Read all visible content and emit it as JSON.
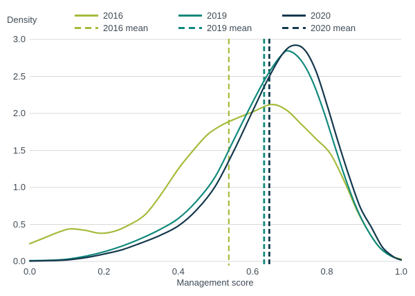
{
  "figure_text": {
    "y_axis_title": "Density",
    "x_axis_title": "Management score"
  },
  "colors": {
    "series_2016": "#a4bc3c",
    "series_2019": "#11897c",
    "series_2020": "#14384d",
    "text": "#3f4a54",
    "gridline": "#d9d9d9",
    "background": "#ffffff"
  },
  "legend": {
    "rows": [
      [
        {
          "label": "2016",
          "color": "#a4bc3c",
          "dashed": false
        },
        {
          "label": "2019",
          "color": "#11897c",
          "dashed": false
        },
        {
          "label": "2020",
          "color": "#14384d",
          "dashed": false
        }
      ],
      [
        {
          "label": "2016 mean",
          "color": "#a4bc3c",
          "dashed": true
        },
        {
          "label": "2019 mean",
          "color": "#11897c",
          "dashed": true
        },
        {
          "label": "2020 mean",
          "color": "#14384d",
          "dashed": true
        }
      ]
    ]
  },
  "chart_data": {
    "type": "line",
    "title": "",
    "xlabel": "Management score",
    "ylabel": "Density",
    "xlim": [
      0,
      1
    ],
    "ylim": [
      0,
      3
    ],
    "xticks": [
      "0.0",
      "0.2",
      "0.4",
      "0.6",
      "0.8",
      "1.0"
    ],
    "yticks": [
      "0.0",
      "0.5",
      "1.0",
      "1.5",
      "2.0",
      "2.5",
      "3.0"
    ],
    "grid": "horizontal",
    "legend_position": "top",
    "series": [
      {
        "name": "2016",
        "color": "#a4bc3c",
        "points": [
          [
            0.0,
            0.24
          ],
          [
            0.04,
            0.32
          ],
          [
            0.08,
            0.4
          ],
          [
            0.11,
            0.44
          ],
          [
            0.15,
            0.42
          ],
          [
            0.19,
            0.38
          ],
          [
            0.23,
            0.41
          ],
          [
            0.27,
            0.5
          ],
          [
            0.31,
            0.63
          ],
          [
            0.35,
            0.88
          ],
          [
            0.4,
            1.25
          ],
          [
            0.44,
            1.5
          ],
          [
            0.48,
            1.72
          ],
          [
            0.52,
            1.85
          ],
          [
            0.56,
            1.94
          ],
          [
            0.6,
            2.02
          ],
          [
            0.65,
            2.12
          ],
          [
            0.69,
            2.05
          ],
          [
            0.73,
            1.86
          ],
          [
            0.77,
            1.66
          ],
          [
            0.81,
            1.45
          ],
          [
            0.85,
            1.05
          ],
          [
            0.88,
            0.7
          ],
          [
            0.91,
            0.42
          ],
          [
            0.94,
            0.2
          ],
          [
            0.97,
            0.08
          ],
          [
            1.0,
            0.03
          ]
        ]
      },
      {
        "name": "2019",
        "color": "#11897c",
        "points": [
          [
            0.0,
            0.01
          ],
          [
            0.05,
            0.015
          ],
          [
            0.1,
            0.03
          ],
          [
            0.15,
            0.07
          ],
          [
            0.2,
            0.13
          ],
          [
            0.25,
            0.21
          ],
          [
            0.3,
            0.31
          ],
          [
            0.35,
            0.43
          ],
          [
            0.4,
            0.58
          ],
          [
            0.45,
            0.82
          ],
          [
            0.5,
            1.15
          ],
          [
            0.55,
            1.65
          ],
          [
            0.6,
            2.15
          ],
          [
            0.64,
            2.52
          ],
          [
            0.68,
            2.8
          ],
          [
            0.7,
            2.84
          ],
          [
            0.73,
            2.72
          ],
          [
            0.76,
            2.45
          ],
          [
            0.79,
            2.05
          ],
          [
            0.82,
            1.58
          ],
          [
            0.85,
            1.12
          ],
          [
            0.88,
            0.72
          ],
          [
            0.91,
            0.42
          ],
          [
            0.94,
            0.2
          ],
          [
            0.97,
            0.08
          ],
          [
            1.0,
            0.02
          ]
        ]
      },
      {
        "name": "2020",
        "color": "#14384d",
        "points": [
          [
            0.0,
            0.005
          ],
          [
            0.05,
            0.01
          ],
          [
            0.1,
            0.02
          ],
          [
            0.15,
            0.05
          ],
          [
            0.2,
            0.1
          ],
          [
            0.25,
            0.16
          ],
          [
            0.3,
            0.25
          ],
          [
            0.35,
            0.35
          ],
          [
            0.4,
            0.48
          ],
          [
            0.45,
            0.7
          ],
          [
            0.5,
            1.02
          ],
          [
            0.55,
            1.5
          ],
          [
            0.6,
            2.03
          ],
          [
            0.64,
            2.45
          ],
          [
            0.68,
            2.8
          ],
          [
            0.71,
            2.92
          ],
          [
            0.74,
            2.86
          ],
          [
            0.77,
            2.58
          ],
          [
            0.8,
            2.12
          ],
          [
            0.83,
            1.62
          ],
          [
            0.86,
            1.15
          ],
          [
            0.89,
            0.73
          ],
          [
            0.92,
            0.46
          ],
          [
            0.95,
            0.19
          ],
          [
            0.98,
            0.06
          ],
          [
            1.0,
            0.02
          ]
        ]
      }
    ],
    "mean_lines": [
      {
        "name": "2016 mean",
        "color": "#a4bc3c",
        "x": 0.536,
        "dash": "8 5",
        "width": 2.2
      },
      {
        "name": "2019 mean",
        "color": "#11897c",
        "x": 0.631,
        "dash": "7 4",
        "width": 2.8
      },
      {
        "name": "2020 mean",
        "color": "#14384d",
        "x": 0.645,
        "dash": "7 4",
        "width": 2.8
      }
    ]
  }
}
